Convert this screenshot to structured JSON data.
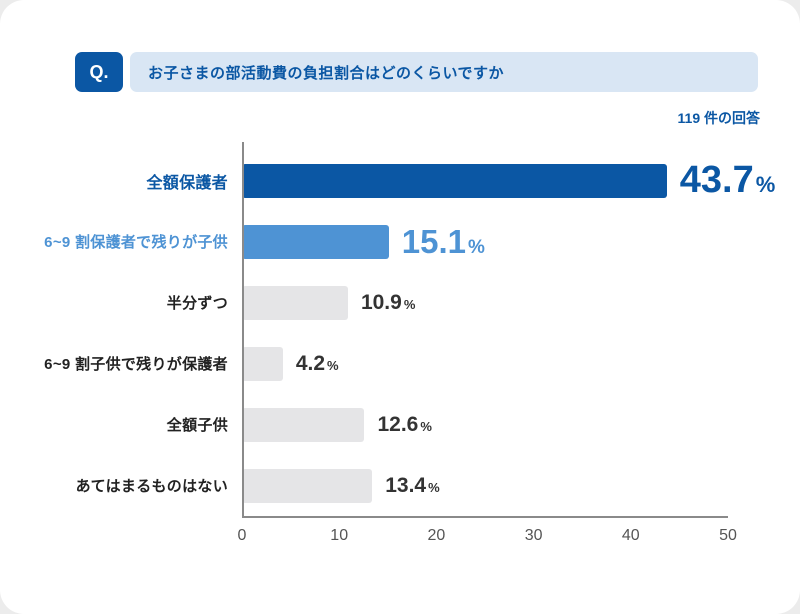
{
  "header": {
    "q_label": "Q.",
    "question": "お子さまの部活動費の負担割合はどのくらいですか",
    "responses": "119 件の回答"
  },
  "colors": {
    "primary": "#0b57a4",
    "secondary": "#4e93d4",
    "gray_bar": "#e5e5e7",
    "banner_bg": "#d9e6f4",
    "axis": "#8a8a8a"
  },
  "chart_data": {
    "type": "bar",
    "orientation": "horizontal",
    "title": "お子さまの部活動費の負担割合はどのくらいですか",
    "responses_note": "119 件の回答",
    "categories": [
      "全額保護者",
      "6~9 割保護者で残りが子供",
      "半分ずつ",
      "6~9 割子供で残りが保護者",
      "全額子供",
      "あてはまるものはない"
    ],
    "values": [
      43.7,
      15.1,
      10.9,
      4.2,
      12.6,
      13.4
    ],
    "value_labels": [
      "43.7",
      "15.1",
      "10.9",
      "4.2",
      "12.6",
      "13.4"
    ],
    "unit": "%",
    "xlim": [
      0,
      50
    ],
    "x_ticks": [
      0,
      10,
      20,
      30,
      40,
      50
    ],
    "bar_styles": [
      "primary",
      "secondary",
      "gray",
      "gray",
      "gray",
      "gray"
    ],
    "grid": false,
    "legend": false
  }
}
